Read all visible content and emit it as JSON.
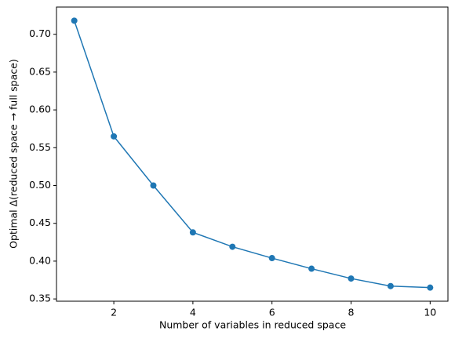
{
  "chart_data": {
    "type": "line",
    "x_label": "Number of variables in reduced space",
    "y_label": "Optimal Δ(reduced space  → full space)",
    "x": [
      1,
      2,
      3,
      4,
      5,
      6,
      7,
      8,
      9,
      10
    ],
    "series": [
      {
        "color": "#1f77b4",
        "values": [
          0.718,
          0.565,
          0.5,
          0.438,
          0.419,
          0.404,
          0.39,
          0.377,
          0.367,
          0.365
        ]
      }
    ],
    "xlim": [
      0.55,
      10.45
    ],
    "xticks": [
      2,
      4,
      6,
      8,
      10
    ],
    "ylim": [
      0.347,
      0.736
    ],
    "yticks": [
      {
        "value": 0.35,
        "label": "0.35"
      },
      {
        "value": 0.4,
        "label": "0.40"
      },
      {
        "value": 0.45,
        "label": "0.45"
      },
      {
        "value": 0.5,
        "label": "0.50"
      },
      {
        "value": 0.55,
        "label": "0.55"
      },
      {
        "value": 0.6,
        "label": "0.60"
      },
      {
        "value": 0.65,
        "label": "0.65"
      },
      {
        "value": 0.7,
        "label": "0.70"
      }
    ],
    "grid": false,
    "markers": true
  }
}
